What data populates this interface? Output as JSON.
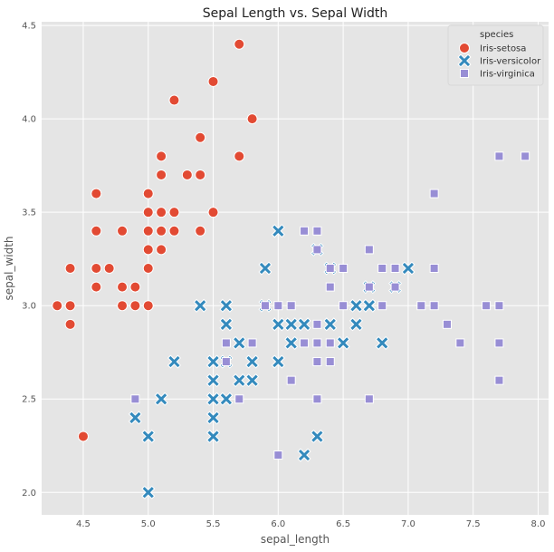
{
  "chart_data": {
    "type": "scatter",
    "title": "Sepal Length vs. Sepal Width",
    "xlabel": "sepal_length",
    "ylabel": "sepal_width",
    "xlim": [
      4.18,
      8.08
    ],
    "ylim": [
      1.88,
      4.52
    ],
    "xticks": [
      4.5,
      5.0,
      5.5,
      6.0,
      6.5,
      7.0,
      7.5,
      8.0
    ],
    "xtick_labels": [
      "4.5",
      "5.0",
      "5.5",
      "6.0",
      "6.5",
      "7.0",
      "7.5",
      "8.0"
    ],
    "yticks": [
      2.0,
      2.5,
      3.0,
      3.5,
      4.0,
      4.5
    ],
    "ytick_labels": [
      "2.0",
      "2.5",
      "3.0",
      "3.5",
      "4.0",
      "4.5"
    ],
    "grid": true,
    "background": "#e5e5e5",
    "legend": {
      "title": "species",
      "placement": "top-right"
    },
    "series": [
      {
        "name": "Iris-setosa",
        "marker": "circle",
        "color": "#e24a33",
        "points": [
          [
            5.7,
            4.4
          ],
          [
            5.5,
            4.2
          ],
          [
            5.2,
            4.1
          ],
          [
            5.8,
            4.0
          ],
          [
            5.4,
            3.9
          ],
          [
            5.1,
            3.8
          ],
          [
            5.7,
            3.8
          ],
          [
            5.1,
            3.7
          ],
          [
            5.3,
            3.7
          ],
          [
            5.4,
            3.7
          ],
          [
            4.6,
            3.6
          ],
          [
            5.0,
            3.6
          ],
          [
            5.1,
            3.5
          ],
          [
            5.0,
            3.5
          ],
          [
            5.2,
            3.5
          ],
          [
            5.5,
            3.5
          ],
          [
            4.6,
            3.4
          ],
          [
            4.8,
            3.4
          ],
          [
            5.0,
            3.4
          ],
          [
            5.1,
            3.4
          ],
          [
            5.2,
            3.4
          ],
          [
            5.4,
            3.4
          ],
          [
            5.0,
            3.3
          ],
          [
            5.1,
            3.3
          ],
          [
            4.4,
            3.2
          ],
          [
            4.6,
            3.2
          ],
          [
            4.7,
            3.2
          ],
          [
            5.0,
            3.2
          ],
          [
            4.6,
            3.1
          ],
          [
            4.8,
            3.1
          ],
          [
            4.9,
            3.1
          ],
          [
            4.3,
            3.0
          ],
          [
            4.4,
            3.0
          ],
          [
            4.8,
            3.0
          ],
          [
            4.9,
            3.0
          ],
          [
            5.0,
            3.0
          ],
          [
            4.4,
            2.9
          ],
          [
            4.5,
            2.3
          ]
        ]
      },
      {
        "name": "Iris-versicolor",
        "marker": "x",
        "color": "#348abd",
        "points": [
          [
            6.0,
            3.4
          ],
          [
            6.3,
            3.3
          ],
          [
            5.9,
            3.2
          ],
          [
            7.0,
            3.2
          ],
          [
            6.4,
            3.2
          ],
          [
            6.7,
            3.1
          ],
          [
            6.9,
            3.1
          ],
          [
            5.4,
            3.0
          ],
          [
            5.6,
            3.0
          ],
          [
            5.9,
            3.0
          ],
          [
            6.6,
            3.0
          ],
          [
            6.7,
            3.0
          ],
          [
            5.6,
            2.9
          ],
          [
            6.0,
            2.9
          ],
          [
            6.1,
            2.9
          ],
          [
            6.2,
            2.9
          ],
          [
            6.4,
            2.9
          ],
          [
            6.6,
            2.9
          ],
          [
            5.7,
            2.8
          ],
          [
            6.1,
            2.8
          ],
          [
            6.5,
            2.8
          ],
          [
            6.8,
            2.8
          ],
          [
            5.5,
            2.7
          ],
          [
            5.8,
            2.7
          ],
          [
            5.6,
            2.7
          ],
          [
            6.0,
            2.7
          ],
          [
            5.2,
            2.7
          ],
          [
            5.5,
            2.6
          ],
          [
            5.7,
            2.6
          ],
          [
            5.8,
            2.6
          ],
          [
            5.1,
            2.5
          ],
          [
            5.5,
            2.5
          ],
          [
            5.6,
            2.5
          ],
          [
            4.9,
            2.4
          ],
          [
            5.5,
            2.4
          ],
          [
            5.0,
            2.3
          ],
          [
            5.5,
            2.3
          ],
          [
            6.3,
            2.3
          ],
          [
            6.2,
            2.2
          ],
          [
            5.0,
            2.0
          ]
        ]
      },
      {
        "name": "Iris-virginica",
        "marker": "square",
        "color": "#988ed5",
        "points": [
          [
            7.7,
            3.8
          ],
          [
            7.9,
            3.8
          ],
          [
            7.2,
            3.6
          ],
          [
            6.2,
            3.4
          ],
          [
            6.3,
            3.4
          ],
          [
            6.3,
            3.3
          ],
          [
            6.7,
            3.3
          ],
          [
            6.4,
            3.2
          ],
          [
            6.5,
            3.2
          ],
          [
            6.8,
            3.2
          ],
          [
            6.9,
            3.2
          ],
          [
            7.2,
            3.2
          ],
          [
            6.4,
            3.1
          ],
          [
            6.7,
            3.1
          ],
          [
            6.9,
            3.1
          ],
          [
            5.9,
            3.0
          ],
          [
            6.0,
            3.0
          ],
          [
            6.1,
            3.0
          ],
          [
            6.5,
            3.0
          ],
          [
            6.8,
            3.0
          ],
          [
            7.1,
            3.0
          ],
          [
            7.2,
            3.0
          ],
          [
            7.6,
            3.0
          ],
          [
            7.7,
            3.0
          ],
          [
            6.3,
            2.9
          ],
          [
            7.3,
            2.9
          ],
          [
            5.6,
            2.8
          ],
          [
            5.8,
            2.8
          ],
          [
            6.2,
            2.8
          ],
          [
            6.3,
            2.8
          ],
          [
            6.4,
            2.8
          ],
          [
            7.4,
            2.8
          ],
          [
            7.7,
            2.8
          ],
          [
            5.6,
            2.7
          ],
          [
            6.3,
            2.7
          ],
          [
            6.4,
            2.7
          ],
          [
            6.1,
            2.6
          ],
          [
            7.7,
            2.6
          ],
          [
            4.9,
            2.5
          ],
          [
            5.7,
            2.5
          ],
          [
            6.3,
            2.5
          ],
          [
            6.7,
            2.5
          ],
          [
            6.0,
            2.2
          ]
        ]
      }
    ]
  }
}
